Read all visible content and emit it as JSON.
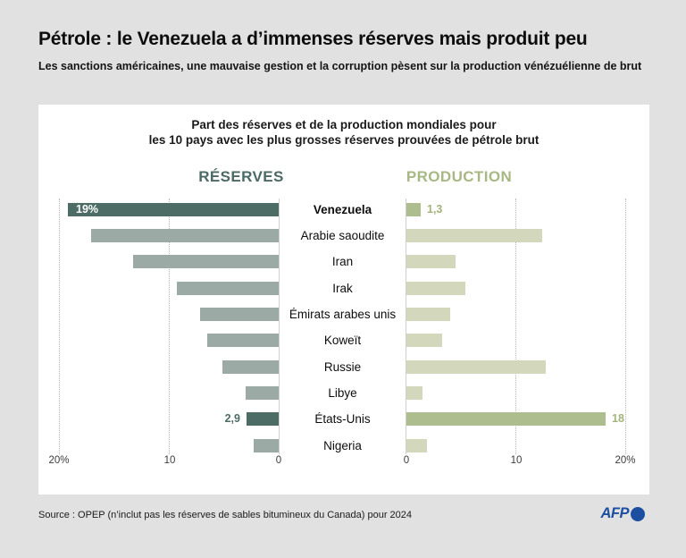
{
  "header": {
    "title": "Pétrole : le Venezuela a d’immenses réserves mais produit peu",
    "subtitle": "Les sanctions américaines, une mauvaise gestion et la corruption pèsent sur la production vénézuélienne de brut"
  },
  "chart_data": {
    "type": "bar",
    "orientation": "diverging-horizontal",
    "title_line1": "Part des réserves et de la production mondiales pour",
    "title_line2": "les 10 pays avec les plus grosses réserves prouvées de pétrole brut",
    "left_header": "RÉSERVES",
    "right_header": "PRODUCTION",
    "categories": [
      "Venezuela",
      "Arabie saoudite",
      "Iran",
      "Irak",
      "Émirats arabes unis",
      "Koweït",
      "Russie",
      "Libye",
      "États-Unis",
      "Nigeria"
    ],
    "series": [
      {
        "name": "Réserves",
        "values": [
          19.2,
          17.1,
          13.3,
          9.3,
          7.2,
          6.5,
          5.1,
          3.0,
          2.9,
          2.3
        ],
        "labels": {
          "0": "19%",
          "8": "2,9"
        }
      },
      {
        "name": "Production",
        "values": [
          1.3,
          12.4,
          4.5,
          5.4,
          4.0,
          3.3,
          12.7,
          1.5,
          18.2,
          1.9
        ],
        "labels": {
          "0": "1,3",
          "8": "18"
        }
      }
    ],
    "highlighted_rows": [
      0,
      8
    ],
    "xlim": [
      0,
      20
    ],
    "axis": {
      "left": [
        "20%",
        "10",
        "0"
      ],
      "right": [
        "0",
        "10",
        "20%"
      ]
    },
    "gridlines": "dotted verticals at 10 and 20, solid baseline at 0",
    "legend_position": "column headers above each half"
  },
  "footer": {
    "source": "Source : OPEP (n’inclut pas les réserves de sables bitumineux du Canada)  pour 2024",
    "logo_text": "AFP"
  },
  "colors": {
    "background": "#e1e1e1",
    "card": "#ffffff",
    "reserves_bar": "#9caaa6",
    "reserves_highlight": "#4d6c66",
    "production_bar": "#d3d8bd",
    "production_highlight": "#aebd8e",
    "reserves_header_text": "#4b6a64",
    "production_header_text": "#a7b885",
    "green_value_text": "#a3b37c",
    "afp_blue": "#1d4fa1"
  }
}
